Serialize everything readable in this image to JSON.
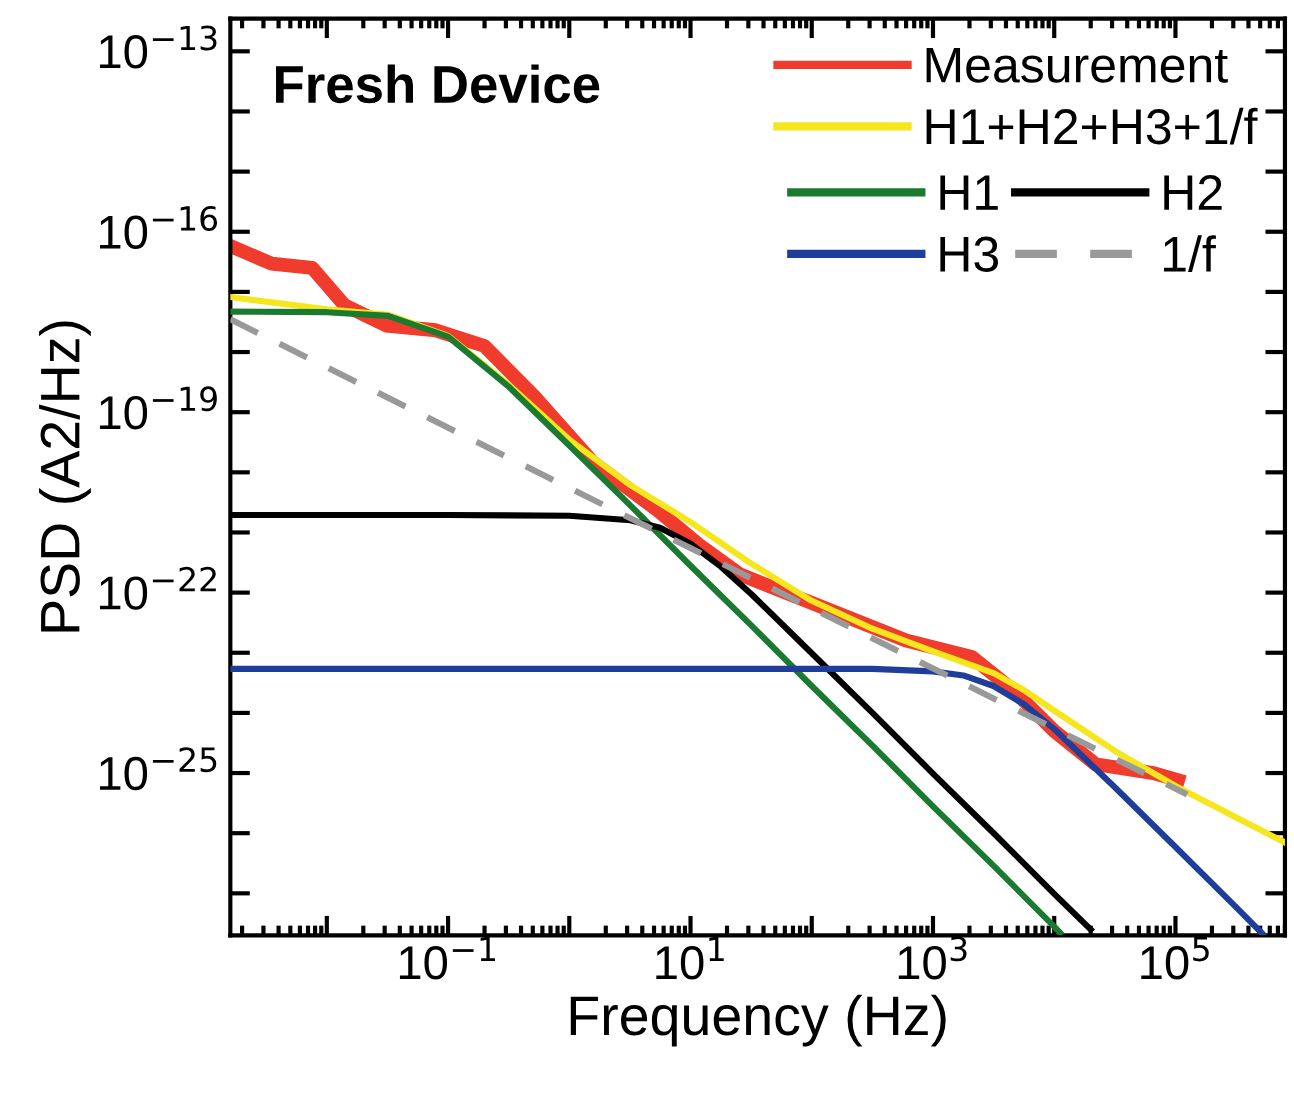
{
  "chart_data": {
    "type": "line",
    "title": "Fresh Device",
    "xlabel": "Frequency (Hz)",
    "ylabel": "PSD (A2/Hz)",
    "log": "xy",
    "grid": false,
    "legend": "top right",
    "marker": "none",
    "xlim": [
      0.0016,
      800000
    ],
    "ylim": [
      2e-28,
      3.5e-13
    ],
    "xticks": [
      {
        "value": 0.01,
        "label": null
      },
      {
        "value": 0.1,
        "label": "10$^{−1}$"
      },
      {
        "value": 1,
        "label": null
      },
      {
        "value": 10,
        "label": "10$^{1}$"
      },
      {
        "value": 100,
        "label": null
      },
      {
        "value": 1000,
        "label": "10$^{3}$"
      },
      {
        "value": 10000,
        "label": null
      },
      {
        "value": 100000,
        "label": "10$^{5}$"
      }
    ],
    "yticks": [
      {
        "value": 1e-27,
        "label": null
      },
      {
        "value": 1e-26,
        "label": null
      },
      {
        "value": 1e-25,
        "label": "10$^{−25}$"
      },
      {
        "value": 1e-24,
        "label": null
      },
      {
        "value": 1e-23,
        "label": null
      },
      {
        "value": 1e-22,
        "label": "10$^{−22}$"
      },
      {
        "value": 1e-21,
        "label": null
      },
      {
        "value": 1e-20,
        "label": null
      },
      {
        "value": 1e-19,
        "label": "10$^{−19}$"
      },
      {
        "value": 1e-18,
        "label": null
      },
      {
        "value": 1e-17,
        "label": null
      },
      {
        "value": 1e-16,
        "label": "10$^{−16}$"
      },
      {
        "value": 1e-15,
        "label": null
      },
      {
        "value": 1e-14,
        "label": null
      },
      {
        "value": 1e-13,
        "label": "10$^{−13}$"
      }
    ],
    "series": [
      {
        "name": "Measurement",
        "color": "#f03c2c",
        "line_style": "solid",
        "x": [
          0.0017,
          0.0035,
          0.0076,
          0.014,
          0.031,
          0.079,
          0.2,
          0.51,
          1.55,
          5.4,
          11.7,
          25.7,
          126,
          600,
          2090,
          4570,
          10000,
          21900,
          66000,
          105000
        ],
        "values": [
          5.5e-17,
          2.95e-17,
          2.5e-17,
          6e-18,
          2.75e-18,
          2.3e-18,
          1.26e-18,
          1.86e-19,
          1.5e-20,
          2.3e-21,
          6.3e-22,
          2e-22,
          5.6e-23,
          1.6e-23,
          8.5e-24,
          2.4e-24,
          5e-25,
          1.4e-25,
          1e-25,
          7.6e-26
        ]
      },
      {
        "name": "H1+H2+H3+1/f",
        "color": "#f5e61e",
        "line_style": "solid",
        "x": [
          0.0016,
          0.01,
          0.032,
          0.1,
          0.32,
          1,
          3.2,
          10,
          32,
          100,
          320,
          1000,
          3200,
          5620,
          10000,
          32000,
          100000,
          320000,
          800000
        ],
        "values": [
          8.2e-18,
          5.15e-18,
          4.17e-18,
          1.86e-18,
          2.8e-19,
          3.5e-20,
          6.1e-21,
          1.49e-21,
          3e-22,
          7.3e-23,
          2.49e-23,
          1.05e-23,
          4.55e-24,
          2.4e-24,
          1.09e-24,
          2.3e-25,
          6.1e-26,
          1.8e-26,
          7e-27
        ]
      },
      {
        "name": "H1",
        "color": "#1a7a30",
        "line_style": "solid",
        "x": [
          0.0016,
          0.01,
          0.032,
          0.1,
          0.32,
          1,
          3.2,
          10,
          32,
          100,
          320,
          1000,
          3200,
          10000,
          11200
        ],
        "values": [
          4.7e-18,
          4.6e-18,
          4e-18,
          1.8e-18,
          2.6e-19,
          2.8e-20,
          2.8e-21,
          2.8e-22,
          2.8e-23,
          2.8e-24,
          2.8e-25,
          2.8e-26,
          2.8e-27,
          2.8e-28,
          2.2e-28
        ]
      },
      {
        "name": "H2",
        "color": "#000000",
        "line_style": "solid",
        "x": [
          0.0016,
          0.1,
          1,
          3.2,
          5.6,
          10,
          17.8,
          32,
          100,
          320,
          1000,
          3200,
          10000,
          20000
        ],
        "values": [
          1.95e-21,
          1.95e-21,
          1.9e-21,
          1.6e-21,
          1.2e-21,
          6.5e-22,
          2.7e-22,
          9.3e-23,
          9.8e-24,
          9.8e-25,
          9.8e-26,
          9.8e-27,
          9.8e-28,
          2.5e-28
        ]
      },
      {
        "name": "H3",
        "color": "#1f3e9a",
        "line_style": "solid",
        "x": [
          0.0016,
          100,
          316,
          1000,
          1780,
          3160,
          5620,
          10000,
          31600,
          100000,
          316000,
          525000
        ],
        "values": [
          5.4e-24,
          5.4e-24,
          5.4e-24,
          4.9e-24,
          4.2e-24,
          2.8e-24,
          1.4e-24,
          5.4e-25,
          5.8e-26,
          5.9e-27,
          5.9e-28,
          2.1e-28
        ]
      },
      {
        "name": "1/f",
        "color": "#999999",
        "line_style": "dashed",
        "x": [
          0.0016,
          1,
          125000
        ],
        "values": [
          3.5e-18,
          5.5e-21,
          4.4e-26
        ]
      }
    ]
  }
}
